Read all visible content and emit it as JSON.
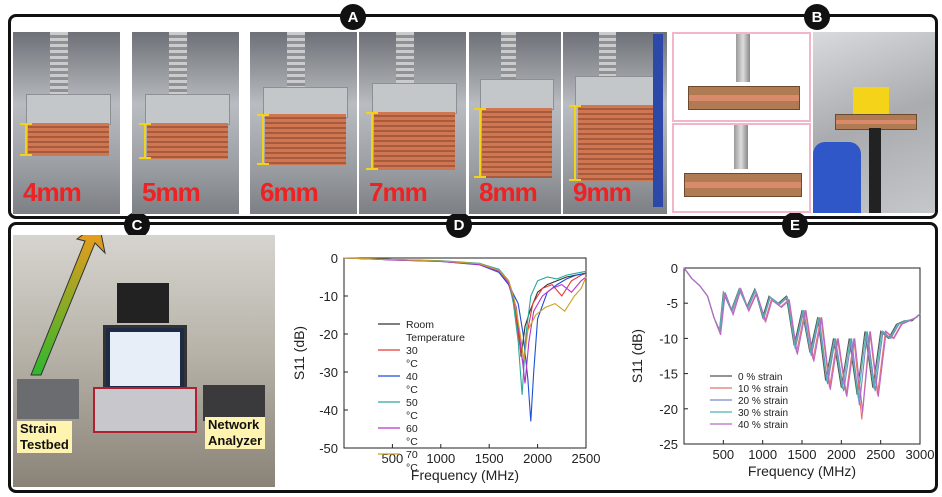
{
  "panels": {
    "a": "A",
    "b": "B",
    "c": "C",
    "d": "D",
    "e": "E"
  },
  "panel_a": {
    "labels": [
      "4mm",
      "5mm",
      "6mm",
      "7mm",
      "8mm",
      "9mm"
    ]
  },
  "panel_c": {
    "label_left": [
      "Strain",
      "Testbed"
    ],
    "label_right": [
      "Network",
      "Analyzer"
    ]
  },
  "chart_data": [
    {
      "type": "line",
      "panel": "D",
      "xlabel": "Frequency (MHz)",
      "ylabel": "S11 (dB)",
      "xlim": [
        0,
        2500
      ],
      "ylim": [
        -50,
        0
      ],
      "xticks": [
        500,
        1000,
        1500,
        2000,
        2500
      ],
      "yticks": [
        0,
        -10,
        -20,
        -30,
        -40,
        -50
      ],
      "legend_position": "center-left",
      "series": [
        {
          "name": "Room Temperature",
          "color": "#333333",
          "x": [
            0,
            500,
            1000,
            1400,
            1600,
            1700,
            1750,
            1800,
            1830,
            1870,
            1920,
            2000,
            2100,
            2200,
            2300,
            2400,
            2500
          ],
          "y": [
            0,
            -0.4,
            -0.8,
            -1.5,
            -3,
            -6,
            -10,
            -18,
            -26,
            -18,
            -14,
            -9,
            -7,
            -6,
            -5,
            -4.5,
            -4
          ]
        },
        {
          "name": "30 °C",
          "color": "#e53935",
          "x": [
            0,
            500,
            1000,
            1400,
            1600,
            1700,
            1760,
            1810,
            1850,
            1890,
            1950,
            2050,
            2150,
            2250,
            2350,
            2450,
            2500
          ],
          "y": [
            0,
            -0.4,
            -0.8,
            -1.6,
            -3.5,
            -7,
            -12,
            -22,
            -28,
            -20,
            -12,
            -8,
            -7,
            -10,
            -6,
            -4.5,
            -4
          ]
        },
        {
          "name": "40 °C",
          "color": "#1e4fd8",
          "x": [
            0,
            500,
            1000,
            1400,
            1600,
            1700,
            1800,
            1850,
            1900,
            1930,
            1960,
            2000,
            2100,
            2200,
            2300,
            2400,
            2500
          ],
          "y": [
            0,
            -0.5,
            -0.9,
            -1.8,
            -3.8,
            -7,
            -12,
            -20,
            -32,
            -43,
            -30,
            -16,
            -9,
            -7,
            -5.5,
            -4.5,
            -4
          ]
        },
        {
          "name": "50 °C",
          "color": "#2aa89a",
          "x": [
            0,
            500,
            1000,
            1400,
            1600,
            1700,
            1750,
            1800,
            1840,
            1880,
            1930,
            2000,
            2100,
            2200,
            2300,
            2400,
            2500
          ],
          "y": [
            0,
            -0.4,
            -0.7,
            -1.4,
            -3,
            -6,
            -12,
            -22,
            -36,
            -20,
            -10,
            -6,
            -5,
            -5.5,
            -4.5,
            -4,
            -3.5
          ]
        },
        {
          "name": "60 °C",
          "color": "#b833c9",
          "x": [
            0,
            500,
            1000,
            1400,
            1600,
            1700,
            1780,
            1830,
            1870,
            1910,
            1960,
            2050,
            2150,
            2250,
            2350,
            2450,
            2500
          ],
          "y": [
            0,
            -0.5,
            -0.9,
            -1.7,
            -3.5,
            -6.5,
            -13,
            -24,
            -33,
            -22,
            -14,
            -10,
            -8,
            -7,
            -9,
            -6,
            -5
          ]
        },
        {
          "name": "70 °C",
          "color": "#c9a227",
          "x": [
            0,
            500,
            1000,
            1400,
            1600,
            1700,
            1760,
            1820,
            1860,
            1900,
            1980,
            2080,
            2180,
            2280,
            2380,
            2450,
            2500
          ],
          "y": [
            0,
            -0.4,
            -0.8,
            -1.5,
            -3.2,
            -6,
            -11,
            -20,
            -27,
            -19,
            -15,
            -13,
            -12,
            -14,
            -10,
            -8,
            -5
          ]
        }
      ]
    },
    {
      "type": "line",
      "panel": "E",
      "xlabel": "Frequency (MHz)",
      "ylabel": "S11 (dB)",
      "xlim": [
        0,
        3000
      ],
      "ylim": [
        -25,
        0
      ],
      "xticks": [
        500,
        1000,
        1500,
        2000,
        2500,
        3000
      ],
      "yticks": [
        0,
        -5,
        -10,
        -15,
        -20,
        -25
      ],
      "legend_position": "bottom-left",
      "series": [
        {
          "name": "0 % strain",
          "color": "#555555",
          "x": [
            0,
            100,
            200,
            300,
            380,
            450,
            500,
            600,
            700,
            800,
            900,
            1000,
            1080,
            1200,
            1300,
            1400,
            1500,
            1600,
            1700,
            1800,
            1900,
            2000,
            2100,
            2200,
            2300,
            2400,
            2500,
            2600,
            2700,
            2800,
            2900,
            3000
          ],
          "y": [
            0,
            -1.5,
            -2.5,
            -4,
            -7,
            -9,
            -3.5,
            -6,
            -3,
            -5.5,
            -3,
            -7,
            -4,
            -5,
            -4,
            -11,
            -6,
            -12,
            -7,
            -16,
            -10,
            -17,
            -10,
            -18,
            -9,
            -17,
            -9,
            -10,
            -8,
            -7.5,
            -7.5,
            -6.5
          ]
        },
        {
          "name": "10 % strain",
          "color": "#e57373",
          "x": [
            0,
            100,
            200,
            300,
            380,
            460,
            520,
            620,
            720,
            820,
            920,
            1030,
            1110,
            1230,
            1330,
            1430,
            1540,
            1640,
            1740,
            1850,
            1950,
            2060,
            2160,
            2260,
            2360,
            2460,
            2560,
            2660,
            2760,
            2860,
            2950,
            3000
          ],
          "y": [
            0,
            -1.5,
            -2.5,
            -4,
            -7,
            -9,
            -3.5,
            -6.5,
            -3,
            -6,
            -3.5,
            -7.5,
            -4.5,
            -5.5,
            -4.5,
            -12,
            -6,
            -13,
            -7,
            -17,
            -10,
            -18,
            -10,
            -21.5,
            -9,
            -18,
            -9,
            -10,
            -8,
            -7.5,
            -7,
            -6.5
          ]
        },
        {
          "name": "20 % strain",
          "color": "#7986cb",
          "x": [
            0,
            100,
            200,
            300,
            380,
            455,
            510,
            610,
            710,
            810,
            910,
            1015,
            1095,
            1215,
            1315,
            1415,
            1520,
            1620,
            1720,
            1825,
            1925,
            2030,
            2130,
            2230,
            2330,
            2430,
            2530,
            2630,
            2730,
            2830,
            2930,
            3000
          ],
          "y": [
            0,
            -1.5,
            -2.5,
            -4,
            -7,
            -9,
            -3.5,
            -6.2,
            -3,
            -5.8,
            -3.2,
            -7.2,
            -4.2,
            -5.2,
            -4.2,
            -11.5,
            -6,
            -12.5,
            -7,
            -16.5,
            -10,
            -17.5,
            -10,
            -19.5,
            -9,
            -17.5,
            -9,
            -10,
            -8,
            -7.5,
            -7.2,
            -6.5
          ]
        },
        {
          "name": "30 % strain",
          "color": "#4db6ac",
          "x": [
            0,
            100,
            200,
            300,
            380,
            450,
            505,
            605,
            705,
            805,
            905,
            1010,
            1090,
            1210,
            1310,
            1410,
            1510,
            1610,
            1710,
            1815,
            1915,
            2015,
            2115,
            2215,
            2315,
            2415,
            2515,
            2615,
            2715,
            2815,
            2915,
            3000
          ],
          "y": [
            0,
            -1.5,
            -2.5,
            -4,
            -7,
            -9,
            -3.5,
            -6,
            -3,
            -5.6,
            -3.1,
            -7.1,
            -4.1,
            -5.1,
            -4.1,
            -11.2,
            -6,
            -12.2,
            -7,
            -16.2,
            -10,
            -17.2,
            -10,
            -18.5,
            -9,
            -17.2,
            -9,
            -10,
            -8,
            -7.5,
            -7.3,
            -6.5
          ]
        },
        {
          "name": "40 % strain",
          "color": "#ba68c8",
          "x": [
            0,
            100,
            200,
            300,
            380,
            465,
            525,
            625,
            725,
            825,
            925,
            1040,
            1120,
            1240,
            1340,
            1440,
            1550,
            1650,
            1750,
            1860,
            1960,
            2070,
            2170,
            2270,
            2370,
            2470,
            2570,
            2670,
            2770,
            2870,
            2960,
            3000
          ],
          "y": [
            0,
            -1.5,
            -2.5,
            -4,
            -7,
            -9.5,
            -3.5,
            -6.6,
            -3,
            -6.1,
            -3.6,
            -7.6,
            -4.6,
            -5.6,
            -4.6,
            -12.3,
            -6,
            -13.3,
            -7,
            -17.3,
            -10,
            -18.3,
            -10,
            -20.5,
            -9,
            -18.3,
            -9,
            -10,
            -8,
            -7.5,
            -7,
            -6.5
          ]
        }
      ]
    }
  ]
}
